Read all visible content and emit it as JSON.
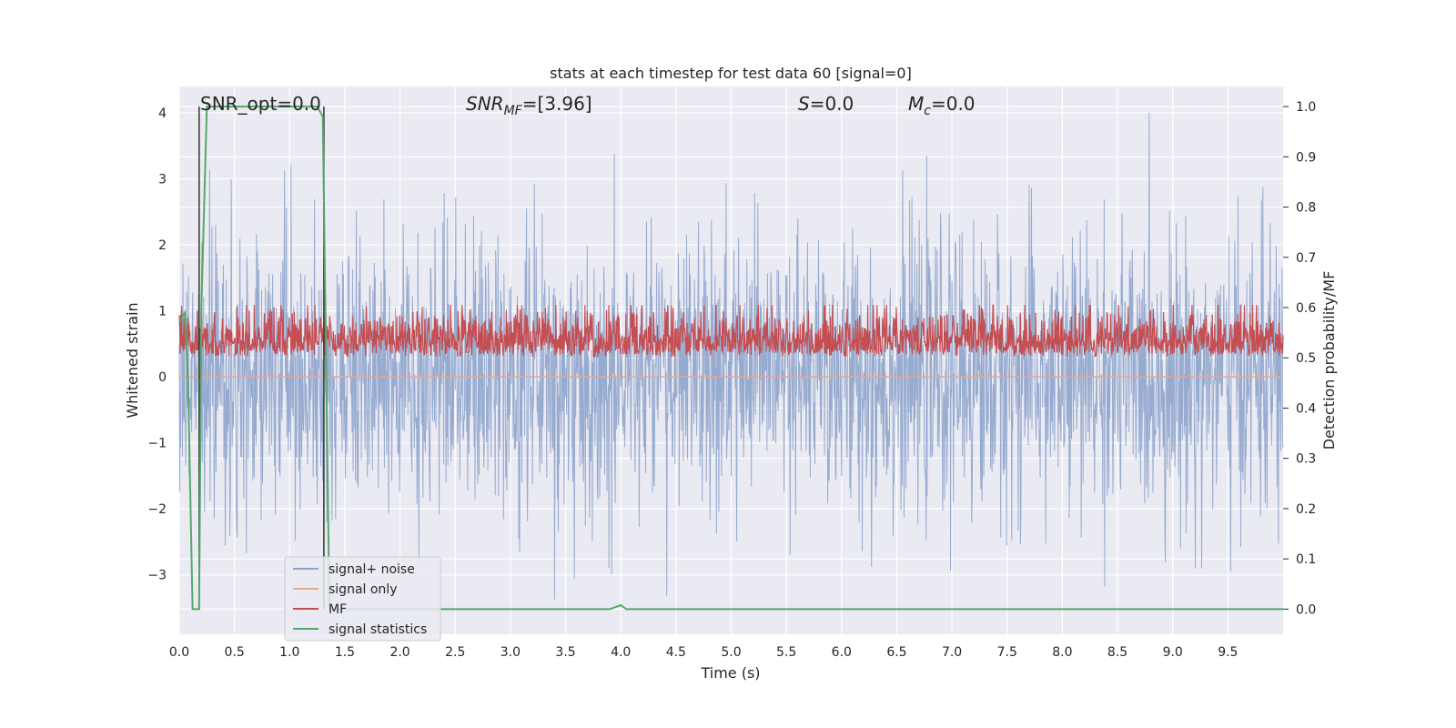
{
  "chart_data": {
    "type": "line",
    "title": "stats at each timestep for test data 60 [signal=0]",
    "xlabel": "Time (s)",
    "ylabel_left": "Whitened strain",
    "ylabel_right": "Detection probability/MF",
    "xlim": [
      0.0,
      10.0
    ],
    "ylim_left": [
      -3.9,
      4.4
    ],
    "ylim_right": [
      -0.05,
      1.04
    ],
    "x_ticks": [
      "0.0",
      "0.5",
      "1.0",
      "1.5",
      "2.0",
      "2.5",
      "3.0",
      "3.5",
      "4.0",
      "4.5",
      "5.0",
      "5.5",
      "6.0",
      "6.5",
      "7.0",
      "7.5",
      "8.0",
      "8.5",
      "9.0",
      "9.5"
    ],
    "y_left_ticks": [
      "−3",
      "−2",
      "−1",
      "0",
      "1",
      "2",
      "3",
      "4"
    ],
    "y_right_ticks": [
      "0.0",
      "0.1",
      "0.2",
      "0.3",
      "0.4",
      "0.5",
      "0.6",
      "0.7",
      "0.8",
      "0.9",
      "1.0"
    ],
    "grid": true,
    "legend_position": "lower-left",
    "annotations": {
      "snr_opt": "SNR_opt=0.0",
      "snr_mf_name": "SNR",
      "snr_mf_sub": "MF",
      "snr_mf_value": "=[3.96]",
      "s_name": "S",
      "s_value": "=0.0",
      "mc_name": "M",
      "mc_sub": "c",
      "mc_value": "=0.0"
    },
    "series": [
      {
        "name": "signal+ noise",
        "axis": "left",
        "color": "#8ea4cc",
        "description_envelope": {
          "amplitude_typical": 1.5,
          "amplitude_max": 4.0
        }
      },
      {
        "name": "signal only",
        "axis": "left",
        "color": "#e8a88a",
        "values_const": 0.0
      },
      {
        "name": "MF",
        "axis": "right",
        "color": "#c44e52",
        "band": [
          0.5,
          0.6
        ]
      },
      {
        "name": "signal statistics",
        "axis": "right",
        "color": "#55a868",
        "x": [
          0.0,
          0.05,
          0.08,
          0.12,
          0.18,
          0.2,
          0.25,
          1.25,
          1.3,
          1.33,
          1.36,
          1.4,
          3.9,
          4.0,
          4.05,
          4.1,
          10.0
        ],
        "y": [
          0.57,
          0.59,
          0.45,
          0.0,
          0.0,
          0.6,
          1.0,
          1.0,
          0.98,
          0.5,
          0.0,
          0.0,
          0.0,
          0.008,
          0.0,
          0.0,
          0.0
        ]
      }
    ],
    "vertical_markers": [
      {
        "x": 0.18,
        "color": "#333333"
      },
      {
        "x": 1.31,
        "color": "#333333"
      }
    ]
  }
}
